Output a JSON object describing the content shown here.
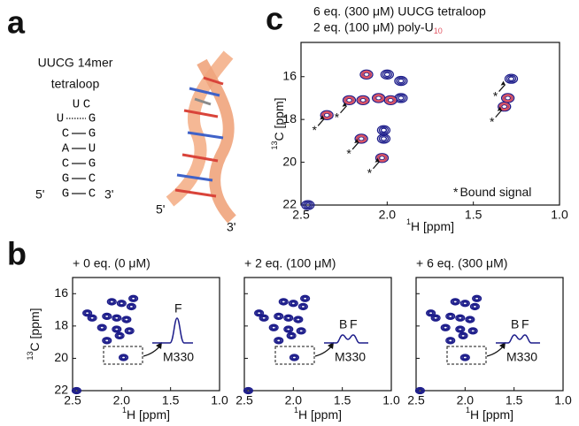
{
  "panels": {
    "a": {
      "label": "a",
      "title": [
        "UUCG 14mer",
        "tetraloop"
      ],
      "loop": [
        "U",
        "C"
      ],
      "pairs": [
        [
          "U",
          "G"
        ],
        [
          "C",
          "G"
        ],
        [
          "A",
          "U"
        ],
        [
          "C",
          "G"
        ],
        [
          "G",
          "C"
        ],
        [
          "G",
          "C"
        ]
      ],
      "ends": [
        "5'",
        "3'"
      ],
      "model_ends": [
        "5'",
        "3'"
      ]
    },
    "c": {
      "label": "c",
      "xlim": [
        2.5,
        1.0
      ],
      "ylim": [
        14.4,
        22
      ],
      "xticks": [
        2.5,
        {
          "value": 2,
          "label": "2.0"
        },
        1.5,
        {
          "value": 1,
          "label": "1.0"
        }
      ],
      "yticks": [
        16,
        18,
        20,
        22
      ],
      "xlabel": {
        "sup": "1",
        "text": "H [ppm]"
      },
      "ylabel": {
        "sup": "13",
        "text": "C [ppm]"
      },
      "series": [
        {
          "name": "6 eq. (300 μM) UUCG tetraloop",
          "color": "#1c1c8a",
          "x": [
            2.46,
            2.35,
            2.22,
            2.14,
            2.05,
            1.98,
            2.12,
            2.0,
            2.15,
            2.02,
            2.02,
            2.03,
            1.92,
            1.92,
            1.28,
            1.3,
            1.32
          ],
          "y": [
            22,
            17.8,
            17.1,
            17.1,
            17.0,
            17.1,
            15.9,
            15.9,
            18.9,
            18.5,
            18.9,
            19.8,
            16.2,
            17.0,
            16.1,
            17.0,
            17.4
          ]
        },
        {
          "name": "2 eq. (100 μM) poly-U",
          "name_sub": "10",
          "color": "#e25563",
          "x": [
            2.35,
            2.22,
            2.14,
            2.05,
            1.98,
            2.12,
            2.15,
            2.03,
            1.3,
            1.32
          ],
          "y": [
            17.8,
            17.1,
            17.1,
            17.0,
            17.1,
            15.9,
            18.9,
            19.8,
            17.0,
            17.4
          ]
        }
      ],
      "bound": {
        "star": "*",
        "text": "Bound signal",
        "x": [
          2.35,
          2.22,
          2.15,
          2.03,
          1.3,
          1.32
        ],
        "y": [
          17.8,
          17.2,
          18.9,
          19.8,
          16.2,
          17.4
        ]
      }
    },
    "b": {
      "label": "b",
      "xlim": [
        2.5,
        1.0
      ],
      "ylim": [
        15,
        22
      ],
      "xticks": [
        2.5,
        {
          "value": 2,
          "label": "2.0"
        },
        1.5,
        {
          "value": 1,
          "label": "1.0"
        }
      ],
      "yticks": [
        16,
        18,
        20,
        22
      ],
      "xlabel": {
        "sup": "1",
        "text": "H [ppm]"
      },
      "ylabel": {
        "sup": "13",
        "text": "C [ppm]"
      },
      "spectra": [
        {
          "title": "+ 0 eq. (0 μM)",
          "inset": [
            "F"
          ],
          "peak": "M330",
          "x": [
            2.46,
            2.35,
            2.3,
            2.1,
            2.0,
            1.9,
            2.15,
            2.05,
            1.95,
            2.2,
            2.05,
            1.92,
            2.15,
            2.02,
            1.98,
            1.88
          ],
          "y": [
            22,
            17.2,
            17.5,
            16.5,
            16.6,
            16.8,
            17.4,
            17.5,
            17.6,
            18.1,
            18.2,
            18.3,
            18.9,
            18.6,
            19.95,
            16.3
          ]
        },
        {
          "title": "+ 2 eq. (100 μM)",
          "inset": [
            "B",
            "F"
          ],
          "peak": "M330",
          "x": [
            2.46,
            2.35,
            2.3,
            2.1,
            2.0,
            1.9,
            2.15,
            2.05,
            1.95,
            2.2,
            2.05,
            1.92,
            2.15,
            2.02,
            1.99,
            1.88
          ],
          "y": [
            22,
            17.2,
            17.5,
            16.5,
            16.6,
            16.8,
            17.4,
            17.5,
            17.6,
            18.1,
            18.2,
            18.3,
            18.9,
            18.6,
            19.95,
            16.3
          ]
        },
        {
          "title": "+ 6 eq. (300 μM)",
          "inset": [
            "B",
            "F"
          ],
          "peak": "M330",
          "x": [
            2.46,
            2.35,
            2.3,
            2.1,
            2.0,
            1.9,
            2.15,
            2.05,
            1.95,
            2.2,
            2.05,
            1.92,
            2.15,
            2.02,
            2.0,
            1.88
          ],
          "y": [
            22,
            17.2,
            17.5,
            16.5,
            16.6,
            16.8,
            17.4,
            17.5,
            17.6,
            18.1,
            18.2,
            18.3,
            18.9,
            18.6,
            19.95,
            16.3
          ]
        }
      ]
    }
  }
}
